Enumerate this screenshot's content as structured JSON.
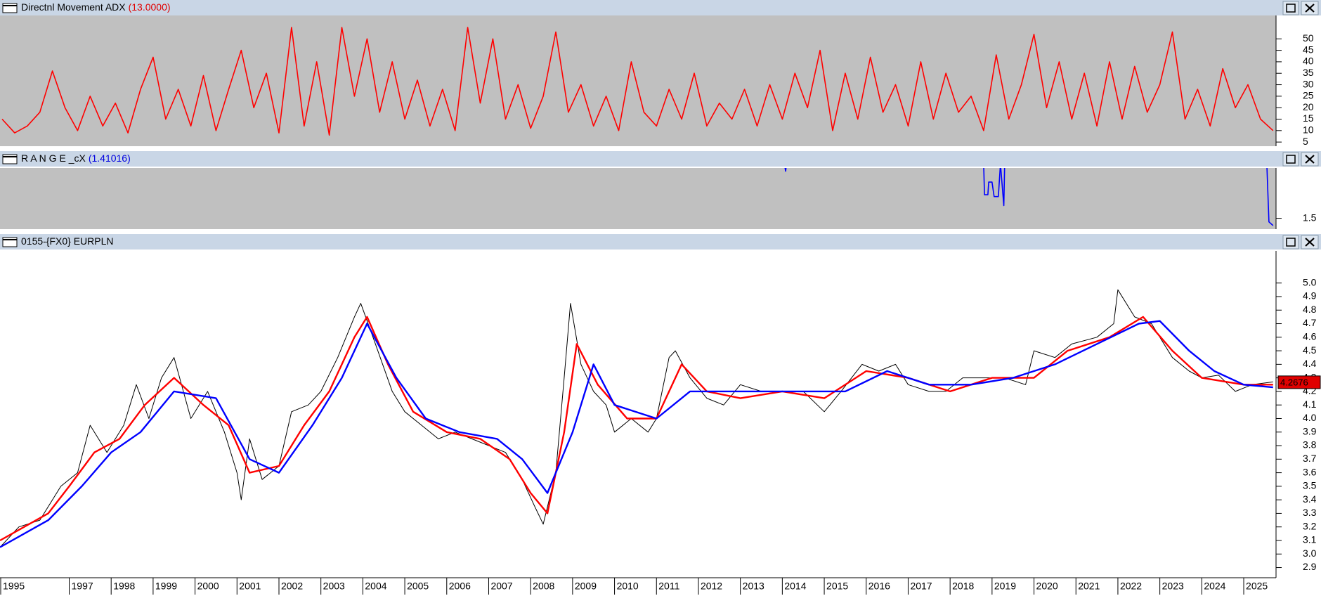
{
  "chart_data": [
    {
      "type": "line",
      "title": "Directnl Movement ADX",
      "param_label": "(13.0000)",
      "xlim": [
        1995.35,
        2025.77
      ],
      "ylim": [
        3.2,
        60.2
      ],
      "yticks": [
        5,
        10,
        15,
        20,
        25,
        30,
        35,
        40,
        45,
        50
      ],
      "series": [
        {
          "color": "#ff0000",
          "x": [
            1995.4,
            1995.7,
            1996.0,
            1996.3,
            1996.6,
            1996.9,
            1997.2,
            1997.5,
            1997.8,
            1998.1,
            1998.4,
            1998.7,
            1999.0,
            1999.3,
            1999.6,
            1999.9,
            2000.2,
            2000.5,
            2000.8,
            2001.1,
            2001.4,
            2001.7,
            2002.0,
            2002.3,
            2002.6,
            2002.9,
            2003.2,
            2003.5,
            2003.8,
            2004.1,
            2004.4,
            2004.7,
            2005.0,
            2005.3,
            2005.6,
            2005.9,
            2006.2,
            2006.5,
            2006.8,
            2007.1,
            2007.4,
            2007.7,
            2008.0,
            2008.3,
            2008.6,
            2008.9,
            2009.2,
            2009.5,
            2009.8,
            2010.1,
            2010.4,
            2010.7,
            2011.0,
            2011.3,
            2011.6,
            2011.9,
            2012.2,
            2012.5,
            2012.8,
            2013.1,
            2013.4,
            2013.7,
            2014.0,
            2014.3,
            2014.6,
            2014.9,
            2015.2,
            2015.5,
            2015.8,
            2016.1,
            2016.4,
            2016.7,
            2017.0,
            2017.3,
            2017.6,
            2017.9,
            2018.2,
            2018.5,
            2018.8,
            2019.1,
            2019.4,
            2019.7,
            2020.0,
            2020.3,
            2020.6,
            2020.9,
            2021.2,
            2021.5,
            2021.8,
            2022.1,
            2022.4,
            2022.7,
            2023.0,
            2023.3,
            2023.6,
            2023.9,
            2024.2,
            2024.5,
            2024.8,
            2025.1,
            2025.4,
            2025.7
          ],
          "values": [
            15,
            9,
            12,
            18,
            36,
            20,
            10,
            25,
            12,
            22,
            9,
            28,
            42,
            15,
            28,
            12,
            34,
            10,
            28,
            45,
            20,
            35,
            9,
            55,
            12,
            40,
            8,
            55,
            25,
            50,
            18,
            40,
            15,
            32,
            12,
            28,
            10,
            55,
            22,
            50,
            15,
            30,
            11,
            25,
            53,
            18,
            30,
            12,
            25,
            10,
            40,
            18,
            12,
            28,
            15,
            35,
            12,
            22,
            15,
            28,
            12,
            30,
            15,
            35,
            20,
            45,
            10,
            35,
            15,
            42,
            18,
            30,
            12,
            40,
            15,
            35,
            18,
            25,
            10,
            43,
            15,
            30,
            52,
            20,
            40,
            15,
            35,
            12,
            40,
            15,
            38,
            18,
            30,
            53,
            15,
            28,
            12,
            37,
            20,
            30,
            15,
            10
          ]
        }
      ]
    },
    {
      "type": "line",
      "title": "R A N G E _cX",
      "param_label": "(1.41016)",
      "xlim": [
        1995.35,
        2025.77
      ],
      "ylim": [
        1.44,
        1.778
      ],
      "yticks": [
        1.5
      ],
      "series": [
        {
          "color": "#0000ff",
          "x": [
            2014.05,
            2014.08,
            2014.1,
            2018.8,
            2018.82,
            2018.9,
            2018.92,
            2019.0,
            2019.05,
            2019.15,
            2019.2,
            2019.28,
            2019.3,
            2025.55,
            2025.6,
            2025.7
          ],
          "values": [
            1.8,
            1.76,
            1.8,
            1.8,
            1.63,
            1.63,
            1.7,
            1.7,
            1.62,
            1.62,
            1.8,
            1.57,
            1.8,
            1.8,
            1.48,
            1.46
          ]
        }
      ]
    },
    {
      "type": "line",
      "title": "0155-{FX0} EURPLN",
      "last_value": 4.2676,
      "xlim": [
        1995.35,
        2025.77
      ],
      "ylim": [
        2.825,
        5.237
      ],
      "yticks": [
        2.9,
        {
          "value": 3,
          "label": "3.0"
        },
        3.1,
        3.2,
        3.3,
        3.4,
        3.5,
        3.6,
        3.7,
        3.8,
        3.9,
        {
          "value": 4,
          "label": "4.0"
        },
        4.1,
        4.2,
        4.3,
        4.4,
        4.5,
        4.6,
        4.7,
        4.8,
        4.9,
        {
          "value": 5,
          "label": "5.0"
        }
      ],
      "xticks": [
        1995,
        1997,
        1998,
        1999,
        2000,
        2001,
        2002,
        2003,
        2004,
        2005,
        2006,
        2007,
        2008,
        2009,
        2010,
        2011,
        2012,
        2013,
        2014,
        2015,
        2016,
        2017,
        2018,
        2019,
        2020,
        2021,
        2022,
        2023,
        2024,
        2025
      ],
      "series": [
        {
          "color": "#000000",
          "x": [
            1995.35,
            1995.8,
            1996.3,
            1996.8,
            1997.2,
            1997.5,
            1997.9,
            1998.3,
            1998.6,
            1998.9,
            1999.2,
            1999.5,
            1999.9,
            2000.3,
            2000.7,
            2001.0,
            2001.1,
            2001.3,
            2001.6,
            2002.0,
            2002.3,
            2002.7,
            2003.0,
            2003.4,
            2003.8,
            2003.95,
            2004.3,
            2004.7,
            2005.0,
            2005.4,
            2005.8,
            2006.2,
            2006.6,
            2007.0,
            2007.4,
            2007.8,
            2008.1,
            2008.3,
            2008.6,
            2008.8,
            2008.95,
            2009.2,
            2009.5,
            2009.8,
            2010.0,
            2010.4,
            2010.8,
            2011.0,
            2011.3,
            2011.45,
            2011.8,
            2012.2,
            2012.6,
            2013.0,
            2013.5,
            2014.0,
            2014.5,
            2015.0,
            2015.4,
            2015.9,
            2016.3,
            2016.7,
            2017.0,
            2017.5,
            2017.9,
            2018.3,
            2018.8,
            2019.3,
            2019.8,
            2020.0,
            2020.5,
            2020.9,
            2021.5,
            2021.9,
            2022.0,
            2022.4,
            2022.8,
            2023.0,
            2023.3,
            2023.7,
            2024.0,
            2024.4,
            2024.8,
            2025.2,
            2025.7
          ],
          "values": [
            3.05,
            3.2,
            3.25,
            3.5,
            3.6,
            3.95,
            3.75,
            3.95,
            4.25,
            4.0,
            4.3,
            4.45,
            4.0,
            4.2,
            3.9,
            3.6,
            3.4,
            3.85,
            3.55,
            3.65,
            4.05,
            4.1,
            4.2,
            4.45,
            4.75,
            4.85,
            4.55,
            4.2,
            4.05,
            3.95,
            3.85,
            3.9,
            3.85,
            3.8,
            3.75,
            3.55,
            3.35,
            3.22,
            3.6,
            4.3,
            4.85,
            4.4,
            4.2,
            4.1,
            3.9,
            4.0,
            3.9,
            4.0,
            4.45,
            4.5,
            4.3,
            4.15,
            4.1,
            4.25,
            4.2,
            4.2,
            4.2,
            4.05,
            4.2,
            4.4,
            4.35,
            4.4,
            4.25,
            4.2,
            4.2,
            4.3,
            4.3,
            4.3,
            4.25,
            4.5,
            4.45,
            4.55,
            4.6,
            4.7,
            4.95,
            4.75,
            4.7,
            4.6,
            4.45,
            4.35,
            4.3,
            4.32,
            4.2,
            4.25,
            4.27
          ]
        },
        {
          "color": "#ff0000",
          "x": [
            1995.35,
            1996.5,
            1997.0,
            1997.6,
            1998.2,
            1998.8,
            1999.5,
            2000.2,
            2000.8,
            2001.3,
            2002.0,
            2002.6,
            2003.2,
            2003.8,
            2004.1,
            2004.6,
            2005.2,
            2006.0,
            2006.8,
            2007.5,
            2008.0,
            2008.4,
            2008.8,
            2009.1,
            2009.6,
            2010.3,
            2011.0,
            2011.6,
            2012.2,
            2013.0,
            2014.0,
            2015.0,
            2016.0,
            2017.0,
            2018.0,
            2019.0,
            2020.0,
            2020.8,
            2021.8,
            2022.6,
            2023.3,
            2024.0,
            2025.0,
            2025.7
          ],
          "values": [
            3.1,
            3.3,
            3.5,
            3.75,
            3.85,
            4.1,
            4.3,
            4.1,
            3.95,
            3.6,
            3.65,
            3.95,
            4.2,
            4.6,
            4.75,
            4.4,
            4.05,
            3.9,
            3.85,
            3.7,
            3.45,
            3.3,
            3.9,
            4.55,
            4.25,
            4.0,
            4.0,
            4.4,
            4.2,
            4.15,
            4.2,
            4.15,
            4.35,
            4.3,
            4.2,
            4.3,
            4.3,
            4.5,
            4.6,
            4.75,
            4.5,
            4.3,
            4.25,
            4.25
          ]
        },
        {
          "color": "#0000ff",
          "x": [
            1995.35,
            1996.5,
            1997.3,
            1998.0,
            1998.7,
            1999.5,
            2000.5,
            2001.3,
            2002.0,
            2002.8,
            2003.5,
            2004.1,
            2004.8,
            2005.5,
            2006.3,
            2007.2,
            2007.8,
            2008.4,
            2009.0,
            2009.5,
            2010.0,
            2011.0,
            2011.8,
            2012.5,
            2013.5,
            2014.5,
            2015.5,
            2016.5,
            2017.5,
            2018.5,
            2019.5,
            2020.5,
            2021.5,
            2022.5,
            2023.0,
            2023.7,
            2024.3,
            2025.0,
            2025.7
          ],
          "values": [
            3.05,
            3.25,
            3.5,
            3.75,
            3.9,
            4.2,
            4.15,
            3.7,
            3.6,
            3.95,
            4.3,
            4.7,
            4.3,
            4.0,
            3.9,
            3.85,
            3.7,
            3.45,
            3.9,
            4.4,
            4.1,
            4.0,
            4.2,
            4.2,
            4.2,
            4.2,
            4.2,
            4.35,
            4.25,
            4.25,
            4.3,
            4.4,
            4.55,
            4.7,
            4.72,
            4.5,
            4.35,
            4.25,
            4.23
          ]
        }
      ]
    }
  ]
}
